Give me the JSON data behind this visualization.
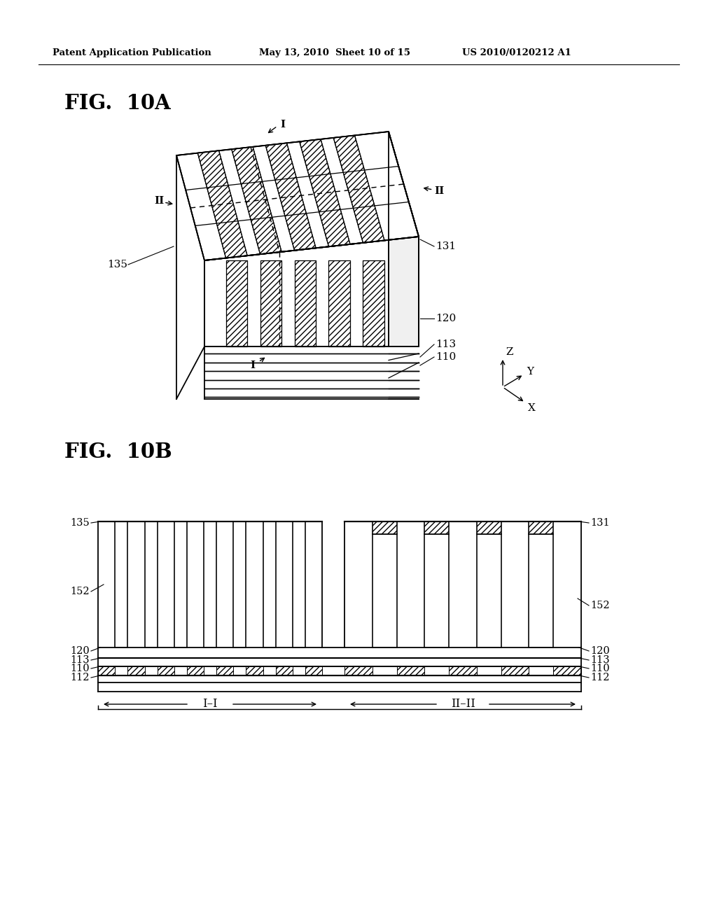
{
  "header_left": "Patent Application Publication",
  "header_mid": "May 13, 2010  Sheet 10 of 15",
  "header_right": "US 2010/0120212 A1",
  "fig_a_label": "FIG.  10A",
  "fig_b_label": "FIG.  10B",
  "bg_color": "#ffffff",
  "line_color": "#000000"
}
